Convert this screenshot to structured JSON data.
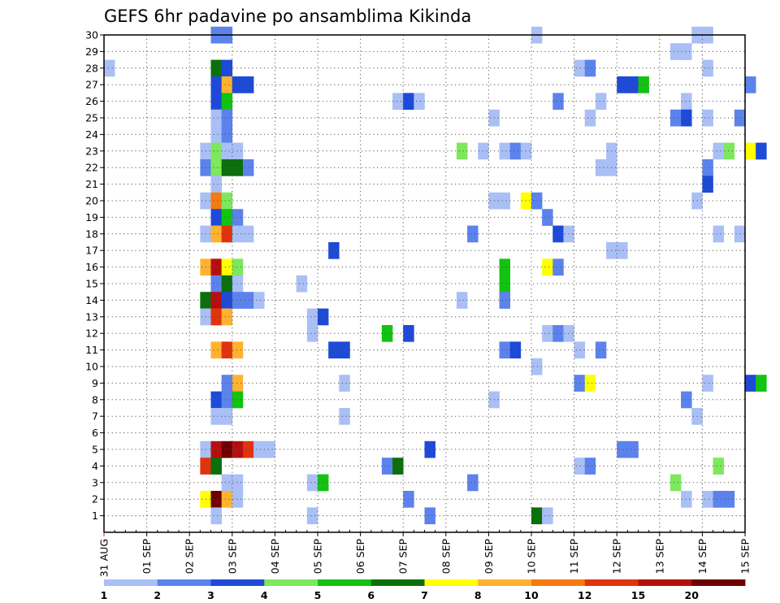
{
  "chart_data": {
    "type": "heatmap",
    "title": "GEFS 6hr padavine po ansamblima Kikinda",
    "xlabel": "",
    "ylabel": "",
    "x_ticks": [
      "31 AUG",
      "01 SEP",
      "02 SEP",
      "03 SEP",
      "04 SEP",
      "05 SEP",
      "06 SEP",
      "07 SEP",
      "08 SEP",
      "09 SEP",
      "10 SEP",
      "11 SEP",
      "12 SEP",
      "13 SEP",
      "14 SEP",
      "15 SEP"
    ],
    "x_steps_per_day": 4,
    "y_ticks": [
      1,
      2,
      3,
      4,
      5,
      6,
      7,
      8,
      9,
      10,
      11,
      12,
      13,
      14,
      15,
      16,
      17,
      18,
      19,
      20,
      21,
      22,
      23,
      24,
      25,
      26,
      27,
      28,
      29,
      30
    ],
    "ylim": [
      0,
      30
    ],
    "grid": true,
    "colorbar": {
      "labels": [
        "1",
        "2",
        "3",
        "4",
        "5",
        "6",
        "7",
        "8",
        "10",
        "12",
        "15",
        "20"
      ],
      "colors": [
        "#aabff5",
        "#5c82ec",
        "#1e4ad8",
        "#7de85c",
        "#12c312",
        "#0b6f0b",
        "#ffff00",
        "#ffb230",
        "#f57a10",
        "#e0340e",
        "#b40f0f",
        "#6e0000"
      ]
    },
    "cells": [
      [
        2.5,
        30,
        1
      ],
      [
        2.75,
        30,
        1
      ],
      [
        10,
        30,
        0
      ],
      [
        13.75,
        30,
        0
      ],
      [
        14,
        30,
        0
      ],
      [
        13.25,
        29,
        0
      ],
      [
        13.5,
        29,
        0
      ],
      [
        0,
        28,
        0
      ],
      [
        2.5,
        28,
        5
      ],
      [
        2.75,
        28,
        2
      ],
      [
        11,
        28,
        0
      ],
      [
        11.25,
        28,
        1
      ],
      [
        14,
        28,
        0
      ],
      [
        2.5,
        27,
        2
      ],
      [
        2.75,
        27,
        7
      ],
      [
        3,
        27,
        2
      ],
      [
        3.25,
        27,
        2
      ],
      [
        12,
        27,
        2
      ],
      [
        12.25,
        27,
        2
      ],
      [
        12.5,
        27,
        4
      ],
      [
        15,
        27,
        1
      ],
      [
        2.5,
        26,
        2
      ],
      [
        2.75,
        26,
        4
      ],
      [
        6.75,
        26,
        0
      ],
      [
        7,
        26,
        2
      ],
      [
        7.25,
        26,
        0
      ],
      [
        10.5,
        26,
        1
      ],
      [
        11.5,
        26,
        0
      ],
      [
        13.5,
        26,
        0
      ],
      [
        2.5,
        25,
        0
      ],
      [
        2.75,
        25,
        1
      ],
      [
        9,
        25,
        0
      ],
      [
        11.25,
        25,
        0
      ],
      [
        13.25,
        25,
        1
      ],
      [
        13.5,
        25,
        2
      ],
      [
        14,
        25,
        0
      ],
      [
        14.75,
        25,
        1
      ],
      [
        2.5,
        24,
        0
      ],
      [
        2.75,
        24,
        1
      ],
      [
        2.25,
        23,
        0
      ],
      [
        2.5,
        23,
        3
      ],
      [
        2.75,
        23,
        0
      ],
      [
        3,
        23,
        0
      ],
      [
        8.25,
        23,
        3
      ],
      [
        8.75,
        23,
        0
      ],
      [
        9.25,
        23,
        0
      ],
      [
        9.5,
        23,
        1
      ],
      [
        9.75,
        23,
        0
      ],
      [
        11.75,
        23,
        0
      ],
      [
        14.25,
        23,
        0
      ],
      [
        14.5,
        23,
        3
      ],
      [
        15,
        23,
        6
      ],
      [
        15.25,
        23,
        2
      ],
      [
        2.25,
        22,
        1
      ],
      [
        2.5,
        22,
        3
      ],
      [
        2.75,
        22,
        5
      ],
      [
        3,
        22,
        5
      ],
      [
        3.25,
        22,
        1
      ],
      [
        11.5,
        22,
        0
      ],
      [
        11.75,
        22,
        0
      ],
      [
        14,
        22,
        1
      ],
      [
        2.5,
        21,
        0
      ],
      [
        14,
        21,
        2
      ],
      [
        2.25,
        20,
        0
      ],
      [
        2.5,
        20,
        8
      ],
      [
        2.75,
        20,
        3
      ],
      [
        9,
        20,
        0
      ],
      [
        9.25,
        20,
        0
      ],
      [
        9.75,
        20,
        6
      ],
      [
        10,
        20,
        1
      ],
      [
        13.75,
        20,
        0
      ],
      [
        2.5,
        19,
        2
      ],
      [
        2.75,
        19,
        4
      ],
      [
        3,
        19,
        1
      ],
      [
        10.25,
        19,
        1
      ],
      [
        2.25,
        18,
        0
      ],
      [
        2.5,
        18,
        7
      ],
      [
        2.75,
        18,
        9
      ],
      [
        3,
        18,
        0
      ],
      [
        3.25,
        18,
        0
      ],
      [
        8.5,
        18,
        1
      ],
      [
        10.5,
        18,
        2
      ],
      [
        10.75,
        18,
        0
      ],
      [
        14.25,
        18,
        0
      ],
      [
        14.75,
        18,
        0
      ],
      [
        5.25,
        17,
        2
      ],
      [
        11.75,
        17,
        0
      ],
      [
        12,
        17,
        0
      ],
      [
        2.25,
        16,
        7
      ],
      [
        2.5,
        16,
        10
      ],
      [
        2.75,
        16,
        6
      ],
      [
        3,
        16,
        3
      ],
      [
        9.25,
        16,
        4
      ],
      [
        10.25,
        16,
        6
      ],
      [
        10.5,
        16,
        1
      ],
      [
        2.5,
        15,
        1
      ],
      [
        2.75,
        15,
        5
      ],
      [
        3,
        15,
        0
      ],
      [
        4.5,
        15,
        0
      ],
      [
        9.25,
        15,
        4
      ],
      [
        2.25,
        14,
        5
      ],
      [
        2.5,
        14,
        10
      ],
      [
        2.75,
        14,
        2
      ],
      [
        3,
        14,
        1
      ],
      [
        3.25,
        14,
        1
      ],
      [
        3.5,
        14,
        0
      ],
      [
        8.25,
        14,
        0
      ],
      [
        9.25,
        14,
        1
      ],
      [
        2.25,
        13,
        0
      ],
      [
        2.5,
        13,
        9
      ],
      [
        2.75,
        13,
        7
      ],
      [
        4.75,
        13,
        0
      ],
      [
        5,
        13,
        2
      ],
      [
        4.75,
        12,
        0
      ],
      [
        6.5,
        12,
        4
      ],
      [
        7,
        12,
        2
      ],
      [
        10.25,
        12,
        0
      ],
      [
        10.5,
        12,
        1
      ],
      [
        10.75,
        12,
        0
      ],
      [
        2.5,
        11,
        7
      ],
      [
        2.75,
        11,
        9
      ],
      [
        3,
        11,
        7
      ],
      [
        5.25,
        11,
        2
      ],
      [
        5.5,
        11,
        2
      ],
      [
        9.25,
        11,
        1
      ],
      [
        9.5,
        11,
        2
      ],
      [
        11,
        11,
        0
      ],
      [
        11.5,
        11,
        1
      ],
      [
        10,
        10,
        0
      ],
      [
        2.75,
        9,
        1
      ],
      [
        3,
        9,
        7
      ],
      [
        5.5,
        9,
        0
      ],
      [
        11,
        9,
        1
      ],
      [
        11.25,
        9,
        6
      ],
      [
        14,
        9,
        0
      ],
      [
        15,
        9,
        2
      ],
      [
        15.25,
        9,
        4
      ],
      [
        2.5,
        8,
        2
      ],
      [
        2.75,
        8,
        1
      ],
      [
        3,
        8,
        4
      ],
      [
        9,
        8,
        0
      ],
      [
        13.5,
        8,
        1
      ],
      [
        2.5,
        7,
        0
      ],
      [
        2.75,
        7,
        0
      ],
      [
        5.5,
        7,
        0
      ],
      [
        13.75,
        7,
        0
      ],
      [
        2.25,
        5,
        0
      ],
      [
        2.5,
        5,
        10
      ],
      [
        2.75,
        5,
        11
      ],
      [
        3,
        5,
        10
      ],
      [
        3.25,
        5,
        9
      ],
      [
        3.5,
        5,
        0
      ],
      [
        3.75,
        5,
        0
      ],
      [
        7.5,
        5,
        2
      ],
      [
        12,
        5,
        1
      ],
      [
        12.25,
        5,
        1
      ],
      [
        2.25,
        4,
        9
      ],
      [
        2.5,
        4,
        5
      ],
      [
        6.5,
        4,
        1
      ],
      [
        6.75,
        4,
        5
      ],
      [
        11,
        4,
        0
      ],
      [
        11.25,
        4,
        1
      ],
      [
        14.25,
        4,
        3
      ],
      [
        2.75,
        3,
        0
      ],
      [
        3,
        3,
        0
      ],
      [
        4.75,
        3,
        0
      ],
      [
        5,
        3,
        4
      ],
      [
        8.5,
        3,
        1
      ],
      [
        13.25,
        3,
        3
      ],
      [
        2.25,
        2,
        6
      ],
      [
        2.5,
        2,
        11
      ],
      [
        2.75,
        2,
        7
      ],
      [
        3,
        2,
        0
      ],
      [
        7,
        2,
        1
      ],
      [
        13.5,
        2,
        0
      ],
      [
        14,
        2,
        0
      ],
      [
        14.25,
        2,
        1
      ],
      [
        14.5,
        2,
        1
      ],
      [
        2.5,
        1,
        0
      ],
      [
        4.75,
        1,
        0
      ],
      [
        7.5,
        1,
        1
      ],
      [
        10,
        1,
        5
      ],
      [
        10.25,
        1,
        0
      ]
    ]
  }
}
